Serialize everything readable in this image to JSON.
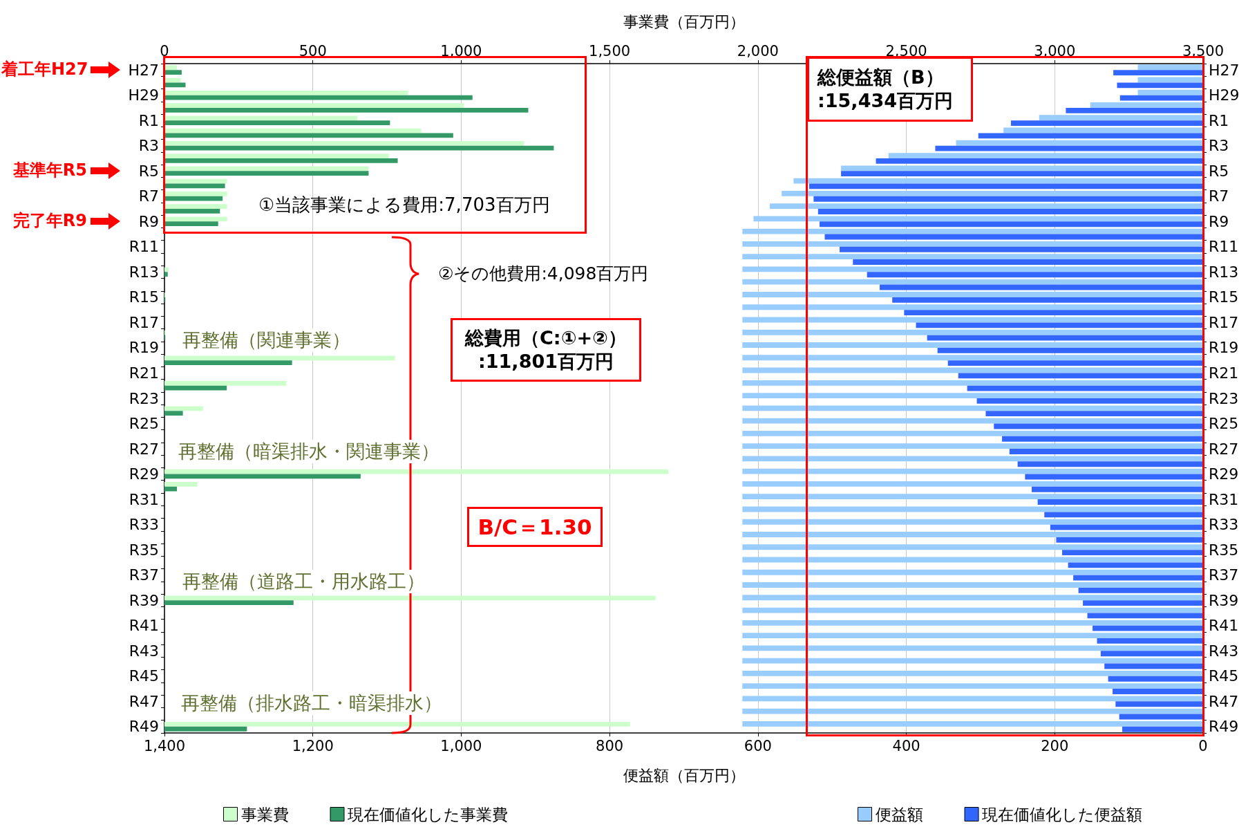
{
  "chart_data": {
    "type": "bar",
    "orientation": "horizontal",
    "categories": [
      "H27",
      null,
      "H29",
      null,
      "R1",
      null,
      "R3",
      null,
      "R5",
      null,
      "R7",
      null,
      "R9",
      null,
      "R11",
      null,
      "R13",
      null,
      "R15",
      null,
      "R17",
      null,
      "R19",
      null,
      "R21",
      null,
      "R23",
      null,
      "R25",
      null,
      "R27",
      null,
      "R29",
      null,
      "R31",
      null,
      "R33",
      null,
      "R35",
      null,
      "R37",
      null,
      "R39",
      null,
      "R41",
      null,
      "R43",
      null,
      "R45",
      null,
      "R47",
      null,
      "R49"
    ],
    "series": [
      {
        "name": "事業費",
        "color": "#ccffcc",
        "axis": "x2",
        "values": [
          42,
          55,
          821,
          1009,
          650,
          865,
          1212,
          756,
          688,
          211,
          211,
          211,
          211,
          0,
          0,
          0,
          14,
          0,
          4,
          0,
          0,
          5,
          0,
          777,
          0,
          411,
          0,
          130,
          0,
          0,
          0,
          0,
          1698,
          111,
          0,
          0,
          0,
          0,
          0,
          0,
          0,
          0,
          1655,
          0,
          0,
          0,
          0,
          0,
          0,
          0,
          0,
          0,
          1569
        ]
      },
      {
        "name": "現在価値化した事業費",
        "color": "#339966",
        "axis": "x2",
        "values": [
          58,
          71,
          1038,
          1226,
          760,
          973,
          1312,
          786,
          688,
          204,
          196,
          187,
          181,
          0,
          0,
          0,
          11,
          0,
          3,
          0,
          0,
          3,
          0,
          430,
          0,
          210,
          0,
          62,
          0,
          0,
          0,
          0,
          661,
          42,
          0,
          0,
          0,
          0,
          0,
          0,
          0,
          0,
          435,
          0,
          0,
          0,
          0,
          0,
          0,
          0,
          0,
          0,
          278
        ]
      },
      {
        "name": "便益額",
        "color": "#99ccff",
        "values": [
          88,
          88,
          88,
          152,
          221,
          269,
          333,
          424,
          488,
          552,
          568,
          584,
          606,
          621,
          621,
          621,
          621,
          621,
          621,
          621,
          621,
          621,
          621,
          621,
          621,
          621,
          621,
          621,
          621,
          621,
          621,
          621,
          621,
          621,
          621,
          621,
          621,
          621,
          621,
          621,
          621,
          621,
          621,
          621,
          621,
          621,
          621,
          621,
          621,
          621,
          621,
          621,
          621
        ]
      },
      {
        "name": "現在価値化した便益額",
        "color": "#3366ff",
        "values": [
          121,
          116,
          112,
          185,
          259,
          303,
          361,
          441,
          488,
          531,
          525,
          519,
          517,
          510,
          490,
          472,
          453,
          436,
          419,
          403,
          387,
          372,
          358,
          344,
          330,
          318,
          305,
          293,
          282,
          271,
          261,
          250,
          240,
          231,
          223,
          214,
          206,
          198,
          190,
          182,
          175,
          168,
          162,
          156,
          149,
          143,
          138,
          133,
          128,
          122,
          118,
          113,
          109
        ]
      }
    ],
    "xlabel": "便益額（百万円）",
    "xlim": [
      1400,
      0
    ],
    "xticks": [
      {
        "value": 1400,
        "label": "1,400"
      },
      {
        "value": 1200,
        "label": "1,200"
      },
      {
        "value": 1000,
        "label": "1,000"
      },
      800,
      600,
      400,
      200,
      0
    ],
    "x2label": "事業費（百万円）",
    "x2lim": [
      0,
      3500
    ],
    "x2ticks": [
      0,
      500,
      {
        "value": 1000,
        "label": "1,000"
      },
      {
        "value": 1500,
        "label": "1,500"
      },
      {
        "value": 2000,
        "label": "2,000"
      },
      {
        "value": 2500,
        "label": "2,500"
      },
      {
        "value": 3000,
        "label": "3,000"
      },
      {
        "value": 3500,
        "label": "3,500"
      }
    ],
    "grid": "x",
    "legend": "bottom",
    "annotations": [
      "着工年H27",
      "基準年R5",
      "完了年R9",
      "①当該事業による費用:7,703百万円",
      "②その他費用:4,098百万円",
      "総費用（C:①+②）\n:11,801百万円",
      "B/C＝1.30",
      "総便益額（B）\n:15,434百万円",
      "再整備（関連事業）",
      "再整備（暗渠排水・関連事業）",
      "再整備（道路工・用水路工）",
      "再整備（排水路工・暗渠排水）"
    ]
  }
}
